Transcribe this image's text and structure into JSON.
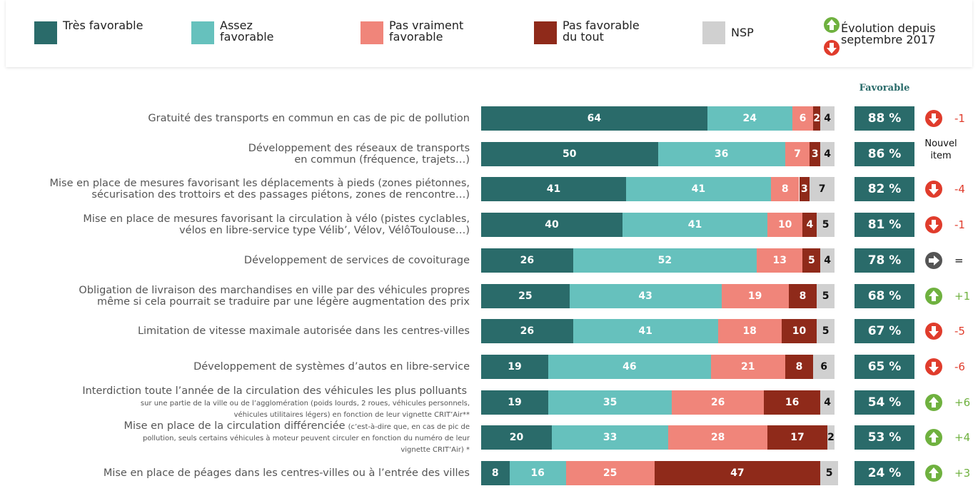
{
  "chart_data": {
    "type": "stacked-bar",
    "series": [
      {
        "name": "Très favorable",
        "color": "#2a6b6a",
        "values": [
          64,
          50,
          41,
          40,
          26,
          25,
          26,
          19,
          19,
          20,
          8
        ]
      },
      {
        "name": "Assez favorable",
        "color": "#66c1bd",
        "values": [
          24,
          36,
          41,
          41,
          52,
          43,
          41,
          46,
          35,
          33,
          16
        ]
      },
      {
        "name": "Pas vraiment favorable",
        "color": "#f0857a",
        "values": [
          6,
          7,
          8,
          10,
          13,
          19,
          18,
          21,
          26,
          28,
          25
        ]
      },
      {
        "name": "Pas favorable du tout",
        "color": "#8f2a1a",
        "values": [
          2,
          3,
          3,
          4,
          5,
          8,
          10,
          8,
          16,
          17,
          47
        ]
      },
      {
        "name": "NSP",
        "color": "#d0d0d0",
        "values": [
          4,
          4,
          7,
          5,
          4,
          5,
          5,
          6,
          4,
          2,
          5
        ]
      }
    ],
    "categories": [
      "Gratuité des transports en commun en cas de pic de pollution",
      "Développement des réseaux de transports\nen commun (fréquence, trajets…)",
      "Mise en place de mesures favorisant les déplacements à pieds (zones piétonnes,\nsécurisation des trottoirs et des passages piétons, zones de rencontre…)",
      "Mise en place de mesures favorisant la circulation à vélo (pistes cyclables,\nvélos en libre-service type Vélib’, Vélov, VélôToulouse…)",
      "Développement de services de covoiturage",
      "Obligation de livraison des marchandises en ville par des véhicules propres\nmême si cela pourrait se traduire par une légère augmentation des prix",
      "Limitation de vitesse maximale autorisée dans les centres-villes",
      "Développement de systèmes d’autos en libre-service",
      "Interdiction toute l’année de la circulation des véhicules les plus polluants",
      "Mise en place de la circulation différenciée",
      "Mise en place de péages dans les centres-villes ou à l’entrée des villes"
    ],
    "category_notes": [
      null,
      null,
      null,
      null,
      null,
      null,
      null,
      null,
      "\nsur une partie de la ville ou de l’agglomération (poids lourds, 2 roues, véhicules personnels,\nvéhicules utilitaires légers) en fonction de leur vignette CRIT’Air**",
      "(c’est-à-dire que, en cas de pic de\npollution, seuls certains véhicules à moteur peuvent circuler en fonction du numéro de leur\nvignette CRIT’Air) *",
      null
    ],
    "xlim": [
      0,
      100
    ],
    "favorable_title": "Favorable",
    "favorable": {
      "values": [
        88,
        86,
        82,
        81,
        78,
        68,
        67,
        65,
        54,
        53,
        24
      ],
      "value_labels": [
        "88 %",
        "86 %",
        "82 %",
        "81 %",
        "78 %",
        "68 %",
        "67 %",
        "65 %",
        "54 %",
        "53 %",
        "24 %"
      ]
    },
    "evolution_title": "Évolution depuis\nseptembre 2017",
    "evolution": {
      "values": [
        -1,
        null,
        -4,
        -1,
        0,
        1,
        -5,
        -6,
        6,
        4,
        3
      ],
      "value_labels": [
        "-1",
        "Nouvel item",
        "-4",
        "-1",
        "=",
        "+1",
        "-5",
        "-6",
        "+6",
        "+4",
        "+3"
      ]
    }
  }
}
